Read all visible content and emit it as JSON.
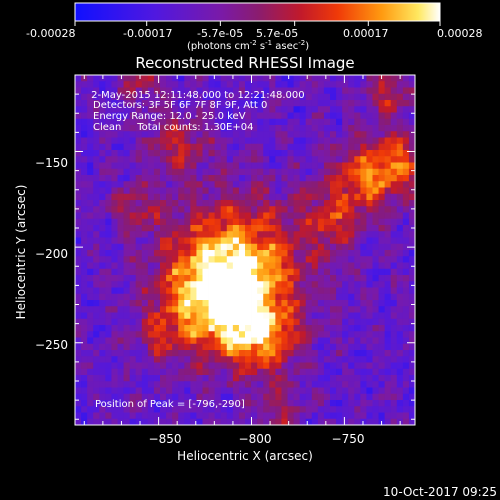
{
  "colorbar": {
    "ticks": [
      "-0.00028",
      "-0.00017",
      "-5.7e-05",
      "5.7e-05",
      "0.00017",
      "0.00028"
    ],
    "tick_values": [
      -0.00028,
      -0.00017,
      -5.7e-05,
      5.7e-05,
      0.00017,
      0.00028
    ],
    "range": [
      -0.00028,
      0.00028
    ],
    "units_main": "(photons cm",
    "units_sup1": "-2",
    "units_mid": " s",
    "units_sup2": "-1",
    "units_end": " asec",
    "units_sup3": "-2",
    "units_close": ")"
  },
  "chart_data": {
    "type": "heatmap",
    "title": "Reconstructed RHESSI Image",
    "xlabel": "Heliocentric X (arcsec)",
    "ylabel": "Heliocentric Y (arcsec)",
    "xlim": [
      -895,
      -712
    ],
    "ylim": [
      -293,
      -110
    ],
    "xticks": [
      -850,
      -800,
      -750
    ],
    "xtick_labels": [
      "−850",
      "−800",
      "−750"
    ],
    "yticks": [
      -150,
      -200,
      -250
    ],
    "ytick_labels": [
      "−150",
      "−200",
      "−250"
    ],
    "annotations": [
      " 2-May-2015 12:11:48.000 to 12:21:48.000",
      "Detectors: 3F 5F 6F 7F 8F 9F, Att 0",
      "Energy Range: 12.0 - 25.0 keV",
      "Clean     Total counts: 1.30E+04"
    ],
    "peak_label": "Position of Peak = [-796,-290]",
    "peak": [
      -796,
      -290
    ]
  },
  "footer": {
    "timestamp": "10-Oct-2017 09:25"
  }
}
